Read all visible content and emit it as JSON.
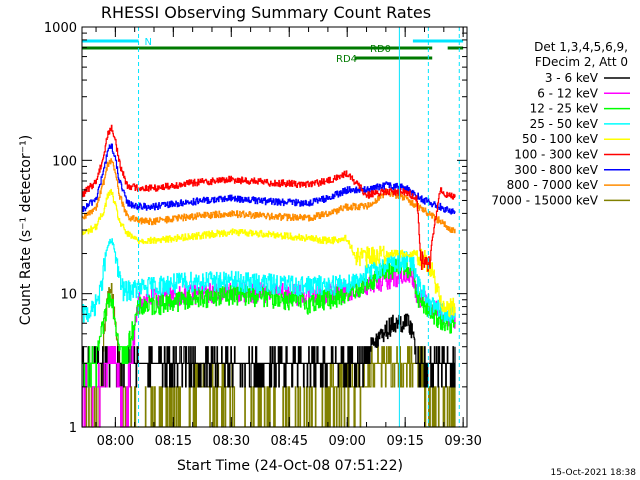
{
  "chart_data": {
    "type": "line",
    "title": "RHESSI Observing Summary Count Rates",
    "xlabel": "Start Time (24-Oct-08 07:51:22)",
    "ylabel": "Count Rate (s⁻¹ detector⁻¹)",
    "yscale": "log",
    "ylim": [
      1,
      1000
    ],
    "xlim": [
      "07:51:22",
      "09:31:00"
    ],
    "x_ticks": [
      "08:00",
      "08:15",
      "08:30",
      "08:45",
      "09:00",
      "09:15",
      "09:30"
    ],
    "y_ticks": [
      "1",
      "10",
      "100",
      "1000"
    ],
    "legend_header": [
      "Det 1,3,4,5,6,9,",
      "FDecim 2, Att 0"
    ],
    "legend_position": "right",
    "timestamp": "15-Oct-2021 18:38",
    "flags": [
      {
        "label": "N",
        "color": "#00e5ff",
        "start": "07:51:22",
        "end": "08:06:00"
      },
      {
        "label": "",
        "color": "#00e5ff",
        "start": "09:17:00",
        "end": "09:30:00"
      },
      {
        "label": "RD0",
        "color": "#007a00",
        "start": "07:51:22",
        "end": "09:22:00"
      },
      {
        "label": "",
        "color": "#007a00",
        "start": "09:26:00",
        "end": "09:30:00"
      },
      {
        "label": "RD4",
        "color": "#007a00",
        "start": "09:02:00",
        "end": "09:22:00"
      }
    ],
    "vlines": [
      {
        "time": "08:06:00",
        "color": "#00e5ff",
        "style": "dashed"
      },
      {
        "time": "09:13:30",
        "color": "#00e5ff",
        "style": "solid"
      },
      {
        "time": "09:21:00",
        "color": "#00e5ff",
        "style": "dashed"
      },
      {
        "time": "09:29:00",
        "color": "#00e5ff",
        "style": "dashed"
      }
    ],
    "series": [
      {
        "name": "3 - 6 keV",
        "color": "#000000",
        "x": [
          "07:51:22",
          "07:56",
          "07:58",
          "07:59",
          "08:01",
          "08:02",
          "08:06",
          "08:10",
          "08:20",
          "08:30",
          "08:40",
          "08:50",
          "08:55",
          "09:00",
          "09:03",
          "09:06",
          "09:09",
          "09:12",
          "09:15",
          "09:17",
          "09:18",
          "09:22",
          "09:26",
          "09:28"
        ],
        "y": [
          2.6,
          2.6,
          2.8,
          3.0,
          2.9,
          2.7,
          3.0,
          3.1,
          3.2,
          3.2,
          3.1,
          2.9,
          2.7,
          2.8,
          3.2,
          4.0,
          5.0,
          6.0,
          6.2,
          5.5,
          3.0,
          2.8,
          2.8,
          2.8
        ]
      },
      {
        "name": "6 - 12 keV",
        "color": "#ff00ff",
        "x": [
          "07:51:22",
          "07:55",
          "07:57",
          "07:58",
          "07:59",
          "08:00",
          "08:01",
          "08:02",
          "08:06",
          "08:10",
          "08:20",
          "08:30",
          "08:40",
          "08:50",
          "09:00",
          "09:05",
          "09:10",
          "09:15",
          "09:17",
          "09:18",
          "09:22",
          "09:26",
          "09:28"
        ],
        "y": [
          1.5,
          1.6,
          2.0,
          2.8,
          3.6,
          3.0,
          1.8,
          1.0,
          9.0,
          9.3,
          10.0,
          10.5,
          10.3,
          9.8,
          10.5,
          11.5,
          13.0,
          14.0,
          13.5,
          10.0,
          8.0,
          6.5,
          6.5
        ]
      },
      {
        "name": "12 - 25 keV",
        "color": "#00ff00",
        "x": [
          "07:51:22",
          "07:55",
          "07:57",
          "07:58",
          "07:59",
          "08:00",
          "08:02",
          "08:06",
          "08:10",
          "08:20",
          "08:30",
          "08:40",
          "08:50",
          "09:00",
          "09:05",
          "09:10",
          "09:15",
          "09:17",
          "09:18",
          "09:22",
          "09:26",
          "09:28"
        ],
        "y": [
          2.7,
          3.5,
          6.0,
          9.0,
          10.0,
          6.0,
          3.0,
          8.0,
          8.3,
          9.3,
          10.0,
          9.5,
          8.5,
          10.0,
          12.0,
          15.0,
          16.0,
          15.5,
          9.5,
          7.0,
          6.0,
          6.0
        ]
      },
      {
        "name": "25 - 50 keV",
        "color": "#00ffff",
        "x": [
          "07:51:22",
          "07:54",
          "07:56",
          "07:57",
          "07:58",
          "07:59",
          "08:00",
          "08:01",
          "08:02",
          "08:06",
          "08:10",
          "08:20",
          "08:30",
          "08:40",
          "08:50",
          "09:00",
          "09:05",
          "09:10",
          "09:15",
          "09:17",
          "09:18",
          "09:22",
          "09:26",
          "09:28"
        ],
        "y": [
          7.0,
          7.5,
          10.0,
          16.0,
          23.0,
          25.0,
          20.0,
          13.0,
          10.5,
          11.0,
          11.5,
          12.5,
          12.5,
          12.0,
          11.5,
          12.0,
          14.0,
          17.0,
          18.0,
          17.0,
          12.0,
          8.0,
          7.0,
          7.0
        ]
      },
      {
        "name": "50 - 100 keV",
        "color": "#ffff00",
        "x": [
          "07:51:22",
          "07:55",
          "07:57",
          "07:58",
          "07:59",
          "08:00",
          "08:01",
          "08:03",
          "08:06",
          "08:10",
          "08:20",
          "08:30",
          "08:40",
          "08:50",
          "08:55",
          "09:00",
          "09:02",
          "09:05",
          "09:10",
          "09:15",
          "09:18",
          "09:20",
          "09:22",
          "09:24",
          "09:26",
          "09:28"
        ],
        "y": [
          28,
          32,
          42,
          55,
          58,
          45,
          35,
          28,
          25,
          25,
          27,
          29,
          28,
          26,
          25,
          26,
          19,
          19,
          20,
          20,
          20,
          18,
          15,
          9,
          8,
          8
        ]
      },
      {
        "name": "100 - 300 keV",
        "color": "#ff0000",
        "x": [
          "07:51:22",
          "07:55",
          "07:57",
          "07:58",
          "07:59",
          "08:00",
          "08:01",
          "08:03",
          "08:06",
          "08:10",
          "08:20",
          "08:30",
          "08:40",
          "08:50",
          "08:55",
          "09:00",
          "09:05",
          "09:10",
          "09:15",
          "09:18",
          "09:19",
          "09:20",
          "09:21",
          "09:24",
          "09:26",
          "09:28"
        ],
        "y": [
          55,
          70,
          110,
          160,
          175,
          140,
          95,
          65,
          62,
          62,
          68,
          72,
          68,
          66,
          70,
          80,
          55,
          58,
          58,
          52,
          18,
          18,
          16,
          60,
          55,
          52
        ]
      },
      {
        "name": "300 - 800 keV",
        "color": "#0000ff",
        "x": [
          "07:51:22",
          "07:55",
          "07:57",
          "07:58",
          "07:59",
          "08:00",
          "08:01",
          "08:03",
          "08:06",
          "08:10",
          "08:20",
          "08:30",
          "08:40",
          "08:50",
          "08:55",
          "09:00",
          "09:05",
          "09:10",
          "09:15",
          "09:20",
          "09:24",
          "09:28"
        ],
        "y": [
          42,
          52,
          85,
          120,
          130,
          100,
          70,
          48,
          45,
          45,
          49,
          52,
          49,
          48,
          52,
          60,
          60,
          65,
          62,
          50,
          45,
          40
        ]
      },
      {
        "name": "800 - 7000 keV",
        "color": "#ff8c00",
        "x": [
          "07:51:22",
          "07:55",
          "07:57",
          "07:58",
          "07:59",
          "08:00",
          "08:01",
          "08:03",
          "08:06",
          "08:10",
          "08:20",
          "08:30",
          "08:40",
          "08:50",
          "08:55",
          "09:00",
          "09:05",
          "09:10",
          "09:15",
          "09:20",
          "09:24",
          "09:28"
        ],
        "y": [
          36,
          45,
          70,
          95,
          100,
          80,
          55,
          38,
          35,
          35,
          38,
          40,
          38,
          37,
          40,
          45,
          45,
          58,
          52,
          42,
          35,
          29
        ]
      },
      {
        "name": "7000 - 15000 keV",
        "color": "#808000",
        "x": [
          "07:51:22",
          "07:56",
          "07:57",
          "07:58",
          "07:59",
          "08:00",
          "08:01",
          "08:02",
          "08:15",
          "08:20",
          "08:30",
          "08:31",
          "08:55",
          "08:56",
          "09:05",
          "09:06",
          "09:20",
          "09:21",
          "09:28"
        ],
        "y": [
          1.0,
          1.5,
          5.0,
          9.0,
          11.0,
          6.0,
          2.5,
          1.0,
          1.0,
          1.7,
          1.7,
          1.0,
          1.0,
          2.2,
          2.2,
          2.5,
          2.5,
          1.0,
          1.0
        ]
      }
    ]
  }
}
